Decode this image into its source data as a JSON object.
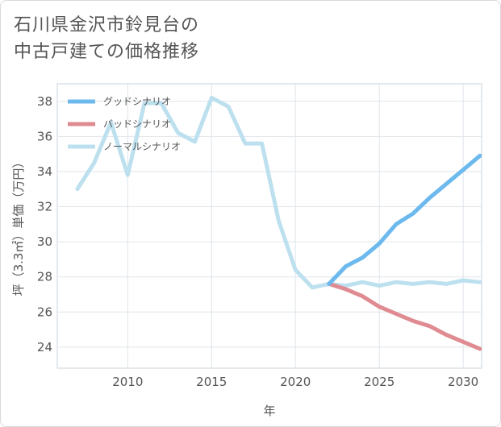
{
  "title_lines": [
    "石川県金沢市鈴見台の",
    "中古戸建ての価格推移"
  ],
  "chart_data": {
    "type": "line",
    "title": "石川県金沢市鈴見台の中古戸建ての価格推移",
    "xlabel": "年",
    "ylabel": "坪（3.3㎡）単価（万円）",
    "xlim": [
      2005.8,
      2031.1
    ],
    "ylim": [
      22.8,
      39.0
    ],
    "x_ticks": [
      2010,
      2015,
      2020,
      2025,
      2030
    ],
    "y_ticks": [
      24,
      26,
      28,
      30,
      32,
      34,
      36,
      38
    ],
    "grid": true,
    "legend_position": "top-left",
    "series": [
      {
        "name": "グッドシナリオ",
        "color": "#6cb9ee",
        "x": [
          2022,
          2023,
          2024,
          2025,
          2026,
          2027,
          2028,
          2029,
          2030,
          2031
        ],
        "y": [
          27.6,
          28.6,
          29.1,
          29.9,
          31.0,
          31.6,
          32.5,
          33.3,
          34.1,
          34.9
        ]
      },
      {
        "name": "バッドシナリオ",
        "color": "#df8b91",
        "x": [
          2022,
          2023,
          2024,
          2025,
          2026,
          2027,
          2028,
          2029,
          2030,
          2031
        ],
        "y": [
          27.6,
          27.3,
          26.9,
          26.3,
          25.9,
          25.5,
          25.2,
          24.7,
          24.3,
          23.9
        ]
      },
      {
        "name": "ノーマルシナリオ",
        "color": "#bde0ef",
        "x": [
          2007,
          2008,
          2009,
          2010,
          2011,
          2012,
          2013,
          2014,
          2015,
          2016,
          2017,
          2018,
          2019,
          2020,
          2021,
          2022,
          2023,
          2024,
          2025,
          2026,
          2027,
          2028,
          2029,
          2030,
          2031
        ],
        "y": [
          33.0,
          34.5,
          36.8,
          33.8,
          37.9,
          37.9,
          36.2,
          35.7,
          38.2,
          37.7,
          35.6,
          35.6,
          31.2,
          28.4,
          27.4,
          27.6,
          27.5,
          27.7,
          27.5,
          27.7,
          27.6,
          27.7,
          27.6,
          27.8,
          27.7
        ]
      }
    ]
  }
}
